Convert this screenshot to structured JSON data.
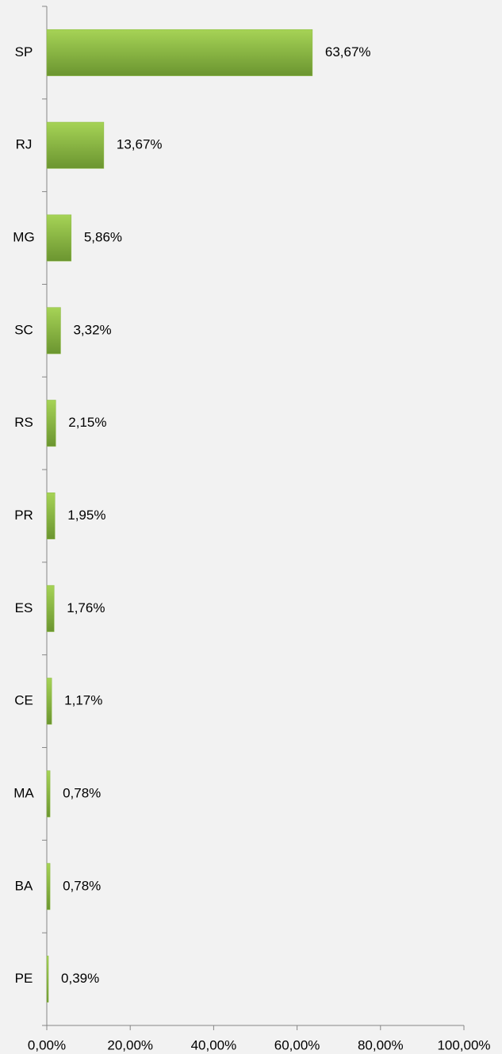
{
  "chart_data": {
    "type": "bar",
    "orientation": "horizontal",
    "categories": [
      "SP",
      "RJ",
      "MG",
      "SC",
      "RS",
      "PR",
      "ES",
      "CE",
      "MA",
      "BA",
      "PE"
    ],
    "values": [
      63.67,
      13.67,
      5.86,
      3.32,
      2.15,
      1.95,
      1.76,
      1.17,
      0.78,
      0.78,
      0.39
    ],
    "value_labels": [
      "63,67%",
      "13,67%",
      "5,86%",
      "3,32%",
      "2,15%",
      "1,95%",
      "1,76%",
      "1,17%",
      "0,78%",
      "0,78%",
      "0,39%"
    ],
    "color": "#8cba42",
    "xlim": [
      0,
      100
    ],
    "xticks": [
      {
        "value": 0,
        "label": "0,00%"
      },
      {
        "value": 20,
        "label": "20,00%"
      },
      {
        "value": 40,
        "label": "40,00%"
      },
      {
        "value": 60,
        "label": "60,00%"
      },
      {
        "value": 80,
        "label": "80,00%"
      },
      {
        "value": 100,
        "label": "100,00%"
      }
    ],
    "grid": false
  }
}
